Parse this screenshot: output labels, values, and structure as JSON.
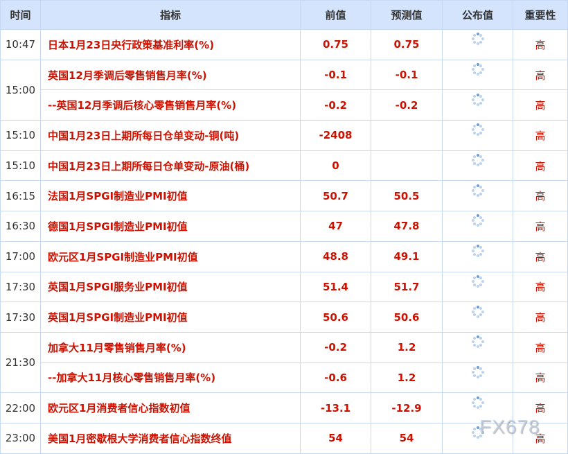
{
  "headers": [
    "时间",
    "指标",
    "前值",
    "预测值",
    "公布值",
    "重要性"
  ],
  "groups": [
    {
      "time": "10:47",
      "rows": [
        {
          "indicator": "日本1月23日央行政策基准利率(%)",
          "prev": "0.75",
          "forecast": "0.75",
          "actual": "",
          "importance": "高"
        }
      ]
    },
    {
      "time": "15:00",
      "rows": [
        {
          "indicator": "英国12月季调后零售销售月率(%)",
          "prev": "-0.1",
          "forecast": "-0.1",
          "actual": "",
          "importance": "高"
        },
        {
          "indicator": "--英国12月季调后核心零售销售月率(%)",
          "prev": "-0.2",
          "forecast": "-0.2",
          "actual": "",
          "importance": "高"
        }
      ]
    },
    {
      "time": "15:10",
      "rows": [
        {
          "indicator": "中国1月23日上期所每日仓单变动-铜(吨)",
          "prev": "-2408",
          "forecast": "",
          "actual": "",
          "importance": "高"
        }
      ]
    },
    {
      "time": "15:10",
      "rows": [
        {
          "indicator": "中国1月23日上期所每日仓单变动-原油(桶)",
          "prev": "0",
          "forecast": "",
          "actual": "",
          "importance": "高"
        }
      ]
    },
    {
      "time": "16:15",
      "rows": [
        {
          "indicator": "法国1月SPGI制造业PMI初值",
          "prev": "50.7",
          "forecast": "50.5",
          "actual": "",
          "importance": "高"
        }
      ]
    },
    {
      "time": "16:30",
      "rows": [
        {
          "indicator": "德国1月SPGI制造业PMI初值",
          "prev": "47",
          "forecast": "47.8",
          "actual": "",
          "importance": "高"
        }
      ]
    },
    {
      "time": "17:00",
      "rows": [
        {
          "indicator": "欧元区1月SPGI制造业PMI初值",
          "prev": "48.8",
          "forecast": "49.1",
          "actual": "",
          "importance": "高"
        }
      ]
    },
    {
      "time": "17:30",
      "rows": [
        {
          "indicator": "英国1月SPGI服务业PMI初值",
          "prev": "51.4",
          "forecast": "51.7",
          "actual": "",
          "importance": "高"
        }
      ]
    },
    {
      "time": "17:30",
      "rows": [
        {
          "indicator": "英国1月SPGI制造业PMI初值",
          "prev": "50.6",
          "forecast": "50.6",
          "actual": "",
          "importance": "高"
        }
      ]
    },
    {
      "time": "21:30",
      "rows": [
        {
          "indicator": "加拿大11月零售销售月率(%)",
          "prev": "-0.2",
          "forecast": "1.2",
          "actual": "",
          "importance": "高"
        },
        {
          "indicator": "--加拿大11月核心零售销售月率(%)",
          "prev": "-0.6",
          "forecast": "1.2",
          "actual": "",
          "importance": "高"
        }
      ]
    },
    {
      "time": "22:00",
      "rows": [
        {
          "indicator": "欧元区1月消费者信心指数初值",
          "prev": "-13.1",
          "forecast": "-12.9",
          "actual": "",
          "importance": "高"
        }
      ]
    },
    {
      "time": "23:00",
      "rows": [
        {
          "indicator": "美国1月密歇根大学消费者信心指数终值",
          "prev": "54",
          "forecast": "54",
          "actual": "",
          "importance": "高"
        }
      ]
    }
  ],
  "actual_icon": "loading-spinner-icon",
  "watermark": "FX678",
  "colors": {
    "header_bg": "#d3e4fc",
    "border": "#c6d8f4",
    "value_red": "#cc1100"
  }
}
